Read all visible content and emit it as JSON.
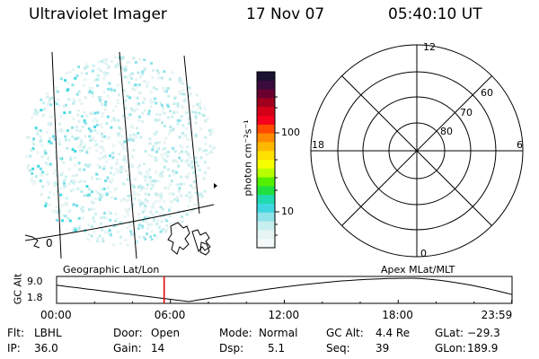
{
  "header": {
    "instrument": "Ultraviolet Imager",
    "date": "17 Nov 07",
    "time": "05:40:10 UT"
  },
  "colorbar": {
    "label": "photon cm⁻²s⁻¹",
    "ticks": [
      "100",
      "10"
    ],
    "colors": [
      "#1a1030",
      "#3a0b3b",
      "#6a0030",
      "#a0001e",
      "#d4001a",
      "#f4001c",
      "#ff4a00",
      "#ff8a00",
      "#ffb800",
      "#ffe000",
      "#f6ff00",
      "#b7ff00",
      "#52f000",
      "#20e040",
      "#20d9b0",
      "#40d8e0",
      "#8fe3ea",
      "#c7efef",
      "#e6f4f4",
      "#f4f9f9"
    ]
  },
  "left_map": {
    "labels": [
      {
        "text": "0",
        "lon": 0
      }
    ],
    "caption": "Geographic Lat/Lon"
  },
  "polar_plot": {
    "mlt_labels": {
      "top": "12",
      "bottom": "0",
      "left": "18",
      "right": "6"
    },
    "lat_labels": [
      "60",
      "70",
      "80"
    ],
    "caption": "Apex MLat/MLT"
  },
  "altitude_plot": {
    "axis_label": "GC Alt",
    "ytick_top": "9.0",
    "ytick_bottom": "1.8",
    "xticks": [
      "00:00",
      "06:00",
      "12:00",
      "18:00",
      "23:59"
    ],
    "marker_time": "05:40"
  },
  "footer": {
    "row1": [
      {
        "k": "Flt:",
        "v": "LBHL"
      },
      {
        "k": "Door:",
        "v": "Open"
      },
      {
        "k": "Mode:",
        "v": "Normal"
      },
      {
        "k": "GC Alt:",
        "v": "4.4 Re"
      },
      {
        "k": "GLat:",
        "v": "−29.3"
      }
    ],
    "row2": [
      {
        "k": "IP:",
        "v": "36.0"
      },
      {
        "k": "Gain:",
        "v": "14"
      },
      {
        "k": "Dsp:",
        "v": "5.1"
      },
      {
        "k": "Seq:",
        "v": "39"
      },
      {
        "k": "GLon:",
        "v": "189.9"
      }
    ]
  }
}
